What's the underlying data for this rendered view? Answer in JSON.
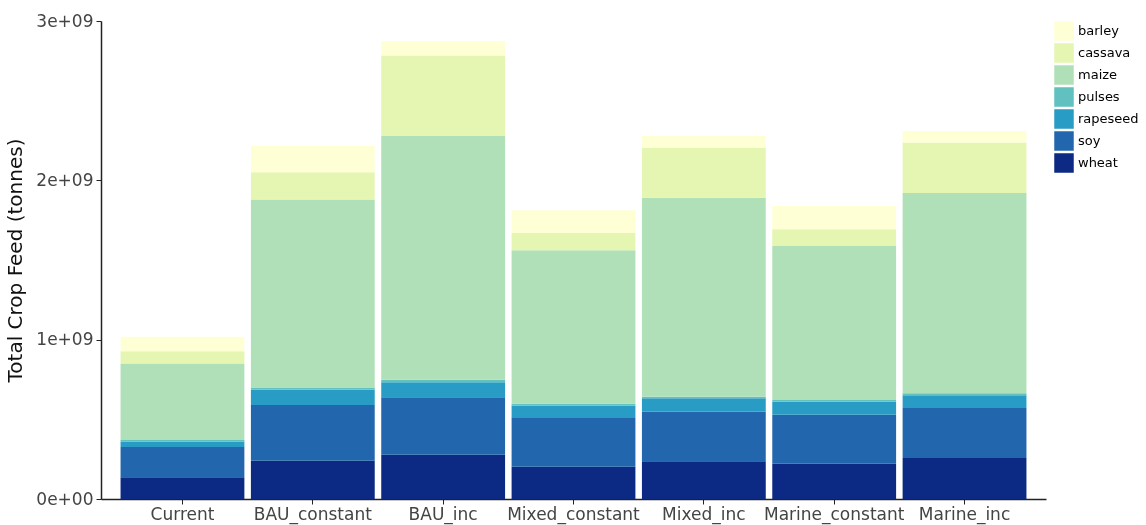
{
  "chart_data": {
    "type": "bar",
    "stacked": true,
    "ylabel": "Total Crop Feed (tonnes)",
    "categories": [
      "Current",
      "BAU_constant",
      "BAU_inc",
      "Mixed_constant",
      "Mixed_inc",
      "Marine_constant",
      "Marine_inc"
    ],
    "series": [
      {
        "name": "wheat",
        "color": "#0c2983",
        "values": [
          136000000,
          240000000,
          278000000,
          203000000,
          237000000,
          222000000,
          257000000
        ]
      },
      {
        "name": "soy",
        "color": "#2267ae",
        "values": [
          190000000,
          350000000,
          360000000,
          305000000,
          311000000,
          307000000,
          314000000
        ]
      },
      {
        "name": "rapeseed",
        "color": "#289cc5",
        "values": [
          35000000,
          95000000,
          95000000,
          78000000,
          84000000,
          82000000,
          80000000
        ]
      },
      {
        "name": "pulses",
        "color": "#60c1c0",
        "values": [
          10000000,
          15000000,
          16000000,
          12000000,
          10000000,
          10000000,
          12000000
        ]
      },
      {
        "name": "maize",
        "color": "#b0e0b7",
        "values": [
          480000000,
          1180000000,
          1530000000,
          963000000,
          1248000000,
          967000000,
          1258000000
        ]
      },
      {
        "name": "cassava",
        "color": "#e5f5b2",
        "values": [
          77000000,
          170000000,
          504000000,
          109000000,
          315000000,
          105000000,
          316000000
        ]
      },
      {
        "name": "barley",
        "color": "#ffffd6",
        "values": [
          90000000,
          165000000,
          90000000,
          142000000,
          74000000,
          146000000,
          73000000
        ]
      }
    ],
    "ylim": [
      0,
      3000000000
    ],
    "yticks": [
      {
        "value": 0,
        "label": "0e+00"
      },
      {
        "value": 1000000000,
        "label": "1e+09"
      },
      {
        "value": 2000000000,
        "label": "2e+09"
      },
      {
        "value": 3000000000,
        "label": "3e+09"
      }
    ],
    "grid": false,
    "legend": "right"
  }
}
